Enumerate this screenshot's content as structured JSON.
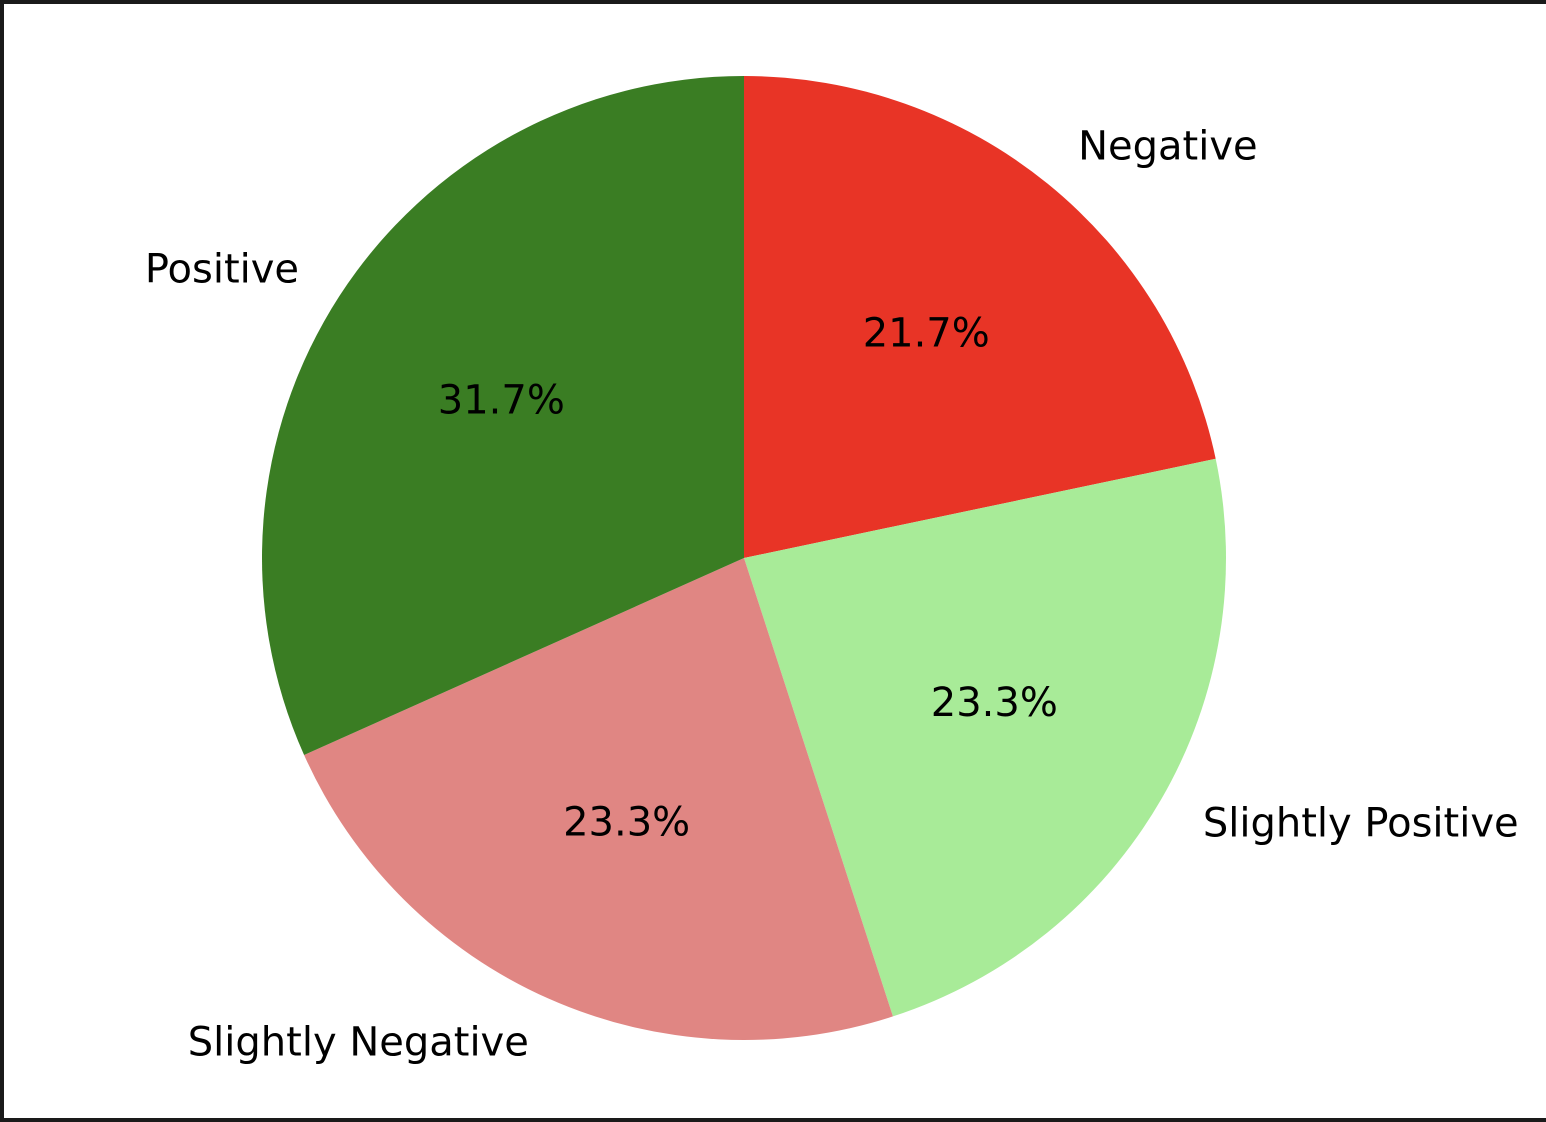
{
  "chart_data": {
    "type": "pie",
    "start_angle_deg": 90,
    "direction": "clockwise",
    "slices": [
      {
        "label": "Negative",
        "value": 21.7,
        "pct_text": "21.7%",
        "color": "#e83426"
      },
      {
        "label": "Slightly Positive",
        "value": 23.3,
        "pct_text": "23.3%",
        "color": "#a8eb98"
      },
      {
        "label": "Slightly Negative",
        "value": 23.3,
        "pct_text": "23.3%",
        "color": "#e08683"
      },
      {
        "label": "Positive",
        "value": 31.7,
        "pct_text": "31.7%",
        "color": "#3a7d23"
      }
    ]
  }
}
